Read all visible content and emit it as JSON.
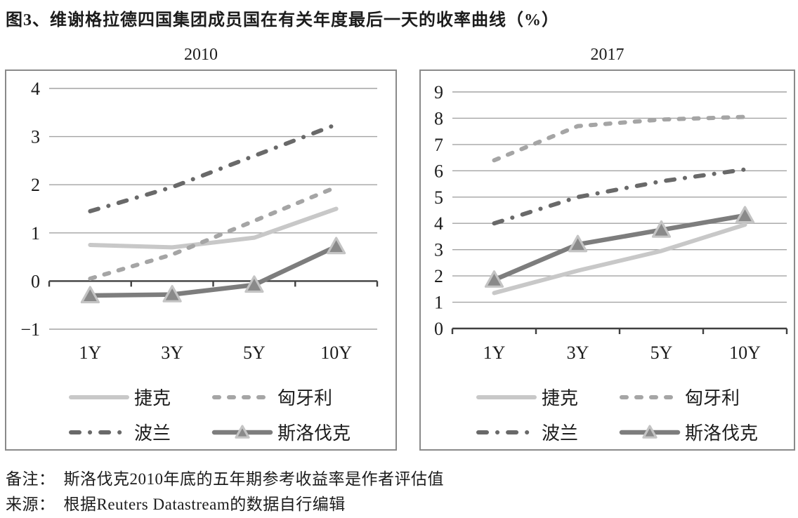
{
  "title": "图3、维谢格拉德四国集团成员国在有关年度最后一天的收率曲线（%）",
  "colors": {
    "grid": "#a3a3a3",
    "axis": "#404040",
    "panel_border": "#8a8a8a",
    "text": "#1c1c1c"
  },
  "notes": {
    "remark_label": "备注：",
    "remark": "斯洛伐克2010年底的五年期参考收益率是作者评估值",
    "source_label": "来源：",
    "source": "根据Reuters Datastream的数据自行编辑"
  },
  "chart_data": [
    {
      "type": "line",
      "title": "2010",
      "categories": [
        "1Y",
        "3Y",
        "5Y",
        "10Y"
      ],
      "xlabel": "",
      "ylabel": "",
      "ylim": [
        -1,
        4
      ],
      "yticks": [
        -1,
        0,
        1,
        2,
        3,
        4
      ],
      "grid": true,
      "legend_position": "bottom",
      "layout": {
        "margin_left": 61,
        "margin_right": 26,
        "margin_top": 25,
        "margin_bottom": 64
      },
      "series": [
        {
          "name": "捷克",
          "values": [
            0.75,
            0.7,
            0.9,
            1.5
          ],
          "color": "#c8c8c8",
          "dash": "solid",
          "marker": "none",
          "width": 6
        },
        {
          "name": "匈牙利",
          "values": [
            0.05,
            0.55,
            1.25,
            1.95
          ],
          "color": "#a5a5a5",
          "dash": "dashed",
          "marker": "none",
          "width": 6
        },
        {
          "name": "波兰",
          "values": [
            1.45,
            1.95,
            2.6,
            3.25
          ],
          "color": "#696969",
          "dash": "dashdot",
          "marker": "none",
          "width": 6
        },
        {
          "name": "斯洛伐克",
          "values": [
            -0.3,
            -0.28,
            -0.08,
            0.72
          ],
          "color": "#7d7d7d",
          "dash": "solid",
          "marker": "triangle",
          "marker_fill": "#8a8a8a",
          "marker_edge": "#c4c4c4",
          "width": 6.5
        }
      ]
    },
    {
      "type": "line",
      "title": "2017",
      "categories": [
        "1Y",
        "3Y",
        "5Y",
        "10Y"
      ],
      "xlabel": "",
      "ylabel": "",
      "ylim": [
        0,
        9
      ],
      "yticks": [
        0,
        1,
        2,
        3,
        4,
        5,
        6,
        7,
        8,
        9
      ],
      "grid": true,
      "legend_position": "bottom",
      "layout": {
        "margin_left": 45,
        "margin_right": 10,
        "margin_top": 30,
        "margin_bottom": 65
      },
      "series": [
        {
          "name": "捷克",
          "values": [
            1.35,
            2.2,
            2.95,
            3.95
          ],
          "color": "#c8c8c8",
          "dash": "solid",
          "marker": "none",
          "width": 6
        },
        {
          "name": "匈牙利",
          "values": [
            6.4,
            7.7,
            7.95,
            8.05
          ],
          "color": "#a5a5a5",
          "dash": "dashed",
          "marker": "none",
          "width": 6
        },
        {
          "name": "波兰",
          "values": [
            4.0,
            5.0,
            5.6,
            6.05
          ],
          "color": "#696969",
          "dash": "dashdot",
          "marker": "none",
          "width": 6
        },
        {
          "name": "斯洛伐克",
          "values": [
            1.85,
            3.2,
            3.75,
            4.3
          ],
          "color": "#7d7d7d",
          "dash": "solid",
          "marker": "triangle",
          "marker_fill": "#8a8a8a",
          "marker_edge": "#c4c4c4",
          "width": 6.5
        }
      ]
    }
  ]
}
